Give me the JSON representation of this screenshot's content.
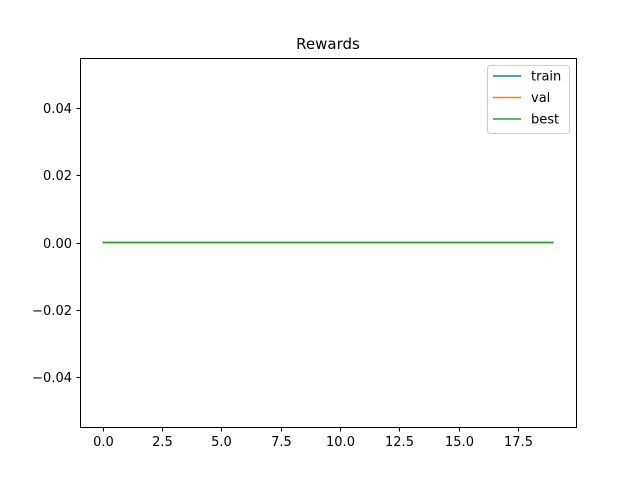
{
  "chart_data": {
    "type": "line",
    "title": "Rewards",
    "xlabel": "",
    "ylabel": "",
    "xlim": [
      -0.95,
      19.95
    ],
    "ylim": [
      -0.055,
      0.055
    ],
    "x_ticks": [
      0,
      2.5,
      5,
      7.5,
      10,
      12.5,
      15,
      17.5
    ],
    "x_tick_labels": [
      "0.0",
      "2.5",
      "5.0",
      "7.5",
      "10.0",
      "12.5",
      "15.0",
      "17.5"
    ],
    "y_ticks": [
      -0.04,
      -0.02,
      0,
      0.02,
      0.04
    ],
    "y_tick_labels": [
      "−0.04",
      "−0.02",
      "0.00",
      "0.02",
      "0.04"
    ],
    "grid": false,
    "legend_position": "top-right",
    "x": [
      0,
      1,
      2,
      3,
      4,
      5,
      6,
      7,
      8,
      9,
      10,
      11,
      12,
      13,
      14,
      15,
      16,
      17,
      18,
      19
    ],
    "series": [
      {
        "name": "train",
        "color": "#1f77b4",
        "values": [
          0,
          0,
          0,
          0,
          0,
          0,
          0,
          0,
          0,
          0,
          0,
          0,
          0,
          0,
          0,
          0,
          0,
          0,
          0,
          0
        ]
      },
      {
        "name": "val",
        "color": "#ff7f0e",
        "values": [
          0,
          0,
          0,
          0,
          0,
          0,
          0,
          0,
          0,
          0,
          0,
          0,
          0,
          0,
          0,
          0,
          0,
          0,
          0,
          0
        ]
      },
      {
        "name": "best",
        "color": "#2ca02c",
        "values": [
          0,
          0,
          0,
          0,
          0,
          0,
          0,
          0,
          0,
          0,
          0,
          0,
          0,
          0,
          0,
          0,
          0,
          0,
          0,
          0
        ]
      }
    ]
  }
}
